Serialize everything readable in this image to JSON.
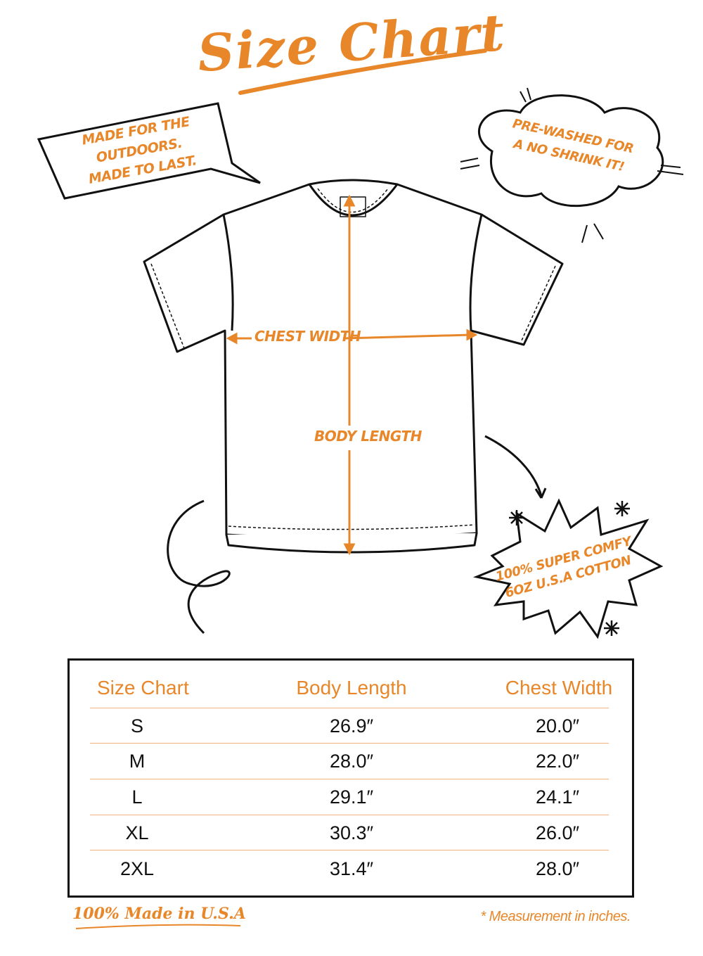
{
  "title": "Size Chart",
  "callouts": {
    "outdoors_line1": "Made for the outdoors.",
    "outdoors_line2": "Made to last.",
    "prewashed_line1": "Pre-washed for",
    "prewashed_line2": "a no shrink it!",
    "cotton_line1": "100% super comfy",
    "cotton_line2": "6oz U.S.A cotton"
  },
  "diagram": {
    "chest_label": "Chest Width",
    "body_label": "Body Length"
  },
  "table": {
    "headers": [
      "Size Chart",
      "Body Length",
      "Chest Width"
    ],
    "rows": [
      {
        "size": "S",
        "body_length": "26.9″",
        "chest_width": "20.0″"
      },
      {
        "size": "M",
        "body_length": "28.0″",
        "chest_width": "22.0″"
      },
      {
        "size": "L",
        "body_length": "29.1″",
        "chest_width": "24.1″"
      },
      {
        "size": "XL",
        "body_length": "30.3″",
        "chest_width": "26.0″"
      },
      {
        "size": "2XL",
        "body_length": "31.4″",
        "chest_width": "28.0″"
      }
    ]
  },
  "footer": {
    "made_in": "100% Made in U.S.A",
    "note": "* Measurement in inches."
  },
  "colors": {
    "accent": "#e8872a",
    "ink": "#111111",
    "rule": "#eeb27a"
  }
}
